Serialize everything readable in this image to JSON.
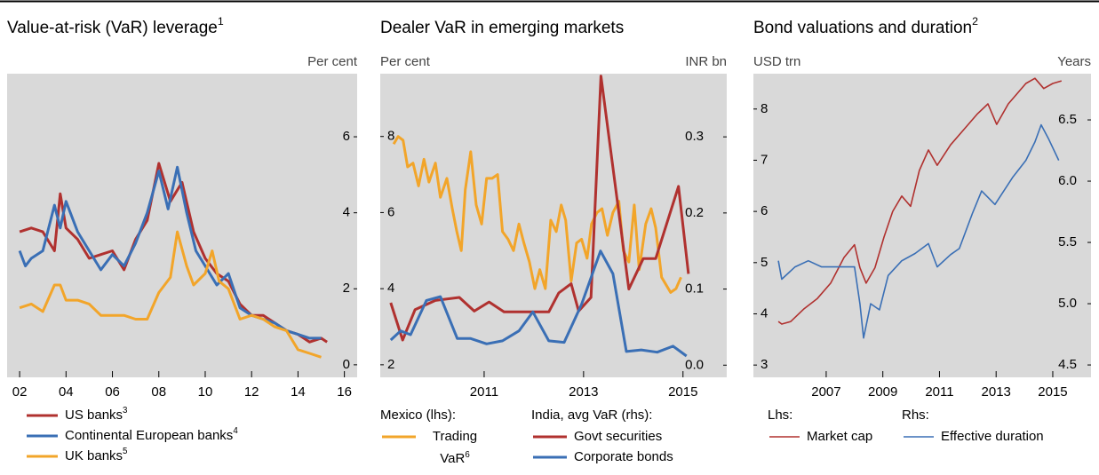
{
  "chart_data": [
    {
      "type": "line",
      "title": "Value-at-risk (VaR) leverage",
      "title_note": "1",
      "y_label": "Per cent",
      "y_side": "right",
      "background": "#d9d9d9",
      "xlim": [
        2001.46,
        2016.55
      ],
      "ylim": [
        -0.33,
        7.66
      ],
      "yticks": [
        0,
        2,
        4,
        6
      ],
      "xticks": [
        {
          "value": 2002,
          "label": "02"
        },
        {
          "value": 2004,
          "label": "04"
        },
        {
          "value": 2006,
          "label": "06"
        },
        {
          "value": 2008,
          "label": "08"
        },
        {
          "value": 2010,
          "label": "10"
        },
        {
          "value": 2012,
          "label": "12"
        },
        {
          "value": 2014,
          "label": "14"
        },
        {
          "value": 2016,
          "label": "16"
        }
      ],
      "series": [
        {
          "name": "US banks",
          "note": "3",
          "color": "#b0312f",
          "x": [
            2002,
            2002.5,
            2003,
            2003.5,
            2003.75,
            2004,
            2004.5,
            2005,
            2005.5,
            2006,
            2006.5,
            2007,
            2007.5,
            2008,
            2008.5,
            2009,
            2009.5,
            2010,
            2010.5,
            2011,
            2011.5,
            2012,
            2012.5,
            2013,
            2013.5,
            2014,
            2014.5,
            2015,
            2015.25
          ],
          "values": [
            3.5,
            3.6,
            3.5,
            3.0,
            4.5,
            3.6,
            3.3,
            2.8,
            2.9,
            3.0,
            2.5,
            3.3,
            3.8,
            5.3,
            4.3,
            4.8,
            3.5,
            2.8,
            2.4,
            2.2,
            1.6,
            1.3,
            1.3,
            1.1,
            0.9,
            0.8,
            0.6,
            0.7,
            0.6
          ]
        },
        {
          "name": "Continental European banks",
          "note": "4",
          "color": "#3a6fb5",
          "x": [
            2002,
            2002.25,
            2002.5,
            2003,
            2003.5,
            2003.75,
            2004,
            2004.5,
            2005,
            2005.5,
            2006,
            2006.5,
            2007,
            2007.5,
            2008,
            2008.4,
            2008.8,
            2009.2,
            2009.6,
            2010,
            2010.5,
            2011,
            2011.5,
            2012,
            2012.5,
            2013,
            2013.5,
            2014,
            2014.5,
            2015
          ],
          "values": [
            3.0,
            2.6,
            2.8,
            3.0,
            4.2,
            3.6,
            4.3,
            3.5,
            3.0,
            2.5,
            2.9,
            2.6,
            3.2,
            4.0,
            5.1,
            4.1,
            5.2,
            4.0,
            3.0,
            2.6,
            2.1,
            2.4,
            1.5,
            1.3,
            1.2,
            1.1,
            0.9,
            0.8,
            0.7,
            0.7
          ]
        },
        {
          "name": "UK banks",
          "note": "5",
          "color": "#f2a52a",
          "x": [
            2002,
            2002.5,
            2003,
            2003.5,
            2003.75,
            2004,
            2004.5,
            2005,
            2005.5,
            2006,
            2006.5,
            2007,
            2007.5,
            2008,
            2008.5,
            2008.8,
            2009.2,
            2009.5,
            2010,
            2010.3,
            2010.6,
            2011,
            2011.5,
            2012,
            2012.5,
            2013,
            2013.5,
            2014,
            2014.5,
            2015
          ],
          "values": [
            1.5,
            1.6,
            1.4,
            2.1,
            2.1,
            1.7,
            1.7,
            1.6,
            1.3,
            1.3,
            1.3,
            1.2,
            1.2,
            1.9,
            2.3,
            3.5,
            2.6,
            2.1,
            2.4,
            3.0,
            2.2,
            2.0,
            1.2,
            1.3,
            1.2,
            1.0,
            0.9,
            0.4,
            0.3,
            0.2
          ]
        }
      ]
    },
    {
      "type": "line",
      "title": "Dealer VaR in emerging markets",
      "y_label": "Per cent",
      "y2_label": "INR bn",
      "background": "#d9d9d9",
      "xlim": [
        2008.91,
        2015.88
      ],
      "ylim": [
        1.67,
        9.65
      ],
      "yticks": [
        2,
        4,
        6,
        8
      ],
      "y2lim": [
        -0.016,
        0.383
      ],
      "y2ticks": [
        {
          "value": 0,
          "label": "0.0"
        },
        0.1,
        0.2,
        0.3
      ],
      "xticks": [
        2011,
        2013,
        2015
      ],
      "groups": [
        {
          "title": "Mexico (lhs):",
          "series": [
            {
              "name": "Trading VaR",
              "note": "6",
              "color": "#f2a52a",
              "x": [
                2009.18,
                2009.27,
                2009.37,
                2009.46,
                2009.57,
                2009.68,
                2009.79,
                2009.89,
                2010.02,
                2010.12,
                2010.25,
                2010.36,
                2010.45,
                2010.54,
                2010.62,
                2010.73,
                2010.84,
                2010.95,
                2011.05,
                2011.16,
                2011.27,
                2011.37,
                2011.48,
                2011.59,
                2011.7,
                2011.8,
                2011.91,
                2012.02,
                2012.12,
                2012.23,
                2012.34,
                2012.45,
                2012.55,
                2012.64,
                2012.75,
                2012.86,
                2012.96,
                2013.07,
                2013.16,
                2013.27,
                2013.37,
                2013.48,
                2013.59,
                2013.71,
                2013.8,
                2013.91,
                2014.02,
                2014.12,
                2014.25,
                2014.36,
                2014.45,
                2014.57,
                2014.75,
                2014.86,
                2014.96
              ],
              "values": [
                7.8,
                8.0,
                7.9,
                7.2,
                7.3,
                6.7,
                7.4,
                6.8,
                7.3,
                6.4,
                6.9,
                6.1,
                5.5,
                5.0,
                6.6,
                7.6,
                6.2,
                5.7,
                6.9,
                6.9,
                7.0,
                5.5,
                5.3,
                5.0,
                5.7,
                5.2,
                4.7,
                4.0,
                4.5,
                4.0,
                5.8,
                5.5,
                6.2,
                5.8,
                4.2,
                5.2,
                5.3,
                4.8,
                5.7,
                6.0,
                6.1,
                5.4,
                6.0,
                6.3,
                5.0,
                4.7,
                6.2,
                4.5,
                5.7,
                6.1,
                5.6,
                4.3,
                3.9,
                4.0,
                4.3
              ]
            }
          ]
        },
        {
          "title": "India, avg VaR (rhs):",
          "series": [
            {
              "name": "Govt securities",
              "color": "#b0312f",
              "axis": "y2",
              "x": [
                2009.12,
                2009.36,
                2009.61,
                2010.02,
                2010.5,
                2010.8,
                2011.1,
                2011.4,
                2011.9,
                2012.3,
                2012.5,
                2012.75,
                2012.9,
                2013.15,
                2013.35,
                2013.91,
                2014.2,
                2014.45,
                2014.91,
                2015.11
              ],
              "values": [
                0.082,
                0.033,
                0.073,
                0.085,
                0.089,
                0.071,
                0.083,
                0.07,
                0.07,
                0.07,
                0.095,
                0.107,
                0.071,
                0.089,
                0.38,
                0.1,
                0.14,
                0.14,
                0.235,
                0.12
              ]
            },
            {
              "name": "Corporate bonds",
              "color": "#3a6fb5",
              "axis": "y2",
              "x": [
                2009.12,
                2009.32,
                2009.52,
                2009.84,
                2010.12,
                2010.46,
                2010.73,
                2011.05,
                2011.37,
                2011.7,
                2011.98,
                2012.3,
                2012.61,
                2012.96,
                2013.34,
                2013.59,
                2013.86,
                2014.16,
                2014.48,
                2014.8,
                2015.07
              ],
              "values": [
                0.033,
                0.045,
                0.04,
                0.085,
                0.09,
                0.035,
                0.035,
                0.028,
                0.032,
                0.045,
                0.07,
                0.032,
                0.03,
                0.08,
                0.15,
                0.12,
                0.018,
                0.02,
                0.017,
                0.025,
                0.012
              ]
            }
          ]
        }
      ]
    },
    {
      "type": "line",
      "title": "Bond valuations and duration",
      "title_note": "2",
      "y_label": "USD trn",
      "y2_label": "Years",
      "background": "#d9d9d9",
      "xlim": [
        2004.43,
        2016.35
      ],
      "ylim": [
        2.76,
        8.69
      ],
      "yticks": [
        3,
        4,
        5,
        6,
        7,
        8
      ],
      "y2lim": [
        4.399,
        6.877
      ],
      "y2ticks": [
        4.5,
        {
          "value": 5,
          "label": "5.0"
        },
        5.5,
        {
          "value": 6,
          "label": "6.0"
        },
        6.5
      ],
      "xticks": [
        2007,
        2009,
        2011,
        2013,
        2015
      ],
      "groups": [
        {
          "title": "Lhs:",
          "series": [
            {
              "name": "Market cap",
              "color": "#b0312f",
              "x": [
                2005.31,
                2005.43,
                2005.75,
                2006.22,
                2006.69,
                2007.16,
                2007.63,
                2008.0,
                2008.19,
                2008.41,
                2008.72,
                2009.04,
                2009.35,
                2009.67,
                2009.98,
                2010.29,
                2010.61,
                2010.92,
                2011.39,
                2011.86,
                2012.33,
                2012.71,
                2013.02,
                2013.43,
                2013.74,
                2014.05,
                2014.37,
                2014.68,
                2015.0,
                2015.31
              ],
              "values": [
                3.85,
                3.8,
                3.85,
                4.1,
                4.3,
                4.6,
                5.1,
                5.35,
                4.9,
                4.6,
                4.9,
                5.5,
                6.0,
                6.3,
                6.1,
                6.8,
                7.2,
                6.9,
                7.3,
                7.6,
                7.9,
                8.1,
                7.7,
                8.1,
                8.3,
                8.5,
                8.6,
                8.4,
                8.5,
                8.55
              ]
            }
          ]
        },
        {
          "title": "Rhs:",
          "series": [
            {
              "name": "Effective duration",
              "color": "#3a6fb5",
              "axis": "y2",
              "x": [
                2005.31,
                2005.43,
                2005.9,
                2006.37,
                2006.84,
                2007.47,
                2008.0,
                2008.19,
                2008.32,
                2008.57,
                2008.88,
                2009.19,
                2009.67,
                2010.14,
                2010.61,
                2010.92,
                2011.39,
                2011.7,
                2012.17,
                2012.49,
                2012.96,
                2013.58,
                2014.05,
                2014.37,
                2014.59,
                2014.84,
                2015.21
              ],
              "values": [
                5.35,
                5.2,
                5.3,
                5.35,
                5.3,
                5.3,
                5.3,
                5.0,
                4.72,
                5.0,
                4.95,
                5.23,
                5.35,
                5.41,
                5.49,
                5.3,
                5.4,
                5.45,
                5.74,
                5.92,
                5.81,
                6.03,
                6.17,
                6.32,
                6.46,
                6.35,
                6.17
              ]
            }
          ]
        }
      ]
    }
  ]
}
